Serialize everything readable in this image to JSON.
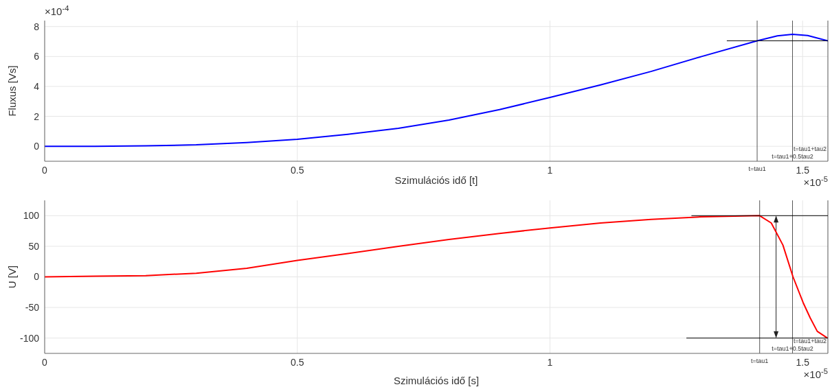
{
  "chart_data": [
    {
      "type": "line",
      "xlabel": "Szimulációs idő [t]",
      "ylabel": "Fluxus [Vs]",
      "xlim": [
        0,
        1.55
      ],
      "xticks": [
        0,
        0.5,
        1,
        1.5
      ],
      "ylim": [
        -1,
        8.4
      ],
      "yticks": [
        0,
        2,
        4,
        6,
        8
      ],
      "grid": true,
      "marker": "none",
      "series": [
        {
          "color": "#0000ff",
          "x": [
            0,
            0.1,
            0.2,
            0.3,
            0.4,
            0.5,
            0.6,
            0.7,
            0.8,
            0.9,
            1.0,
            1.1,
            1.2,
            1.3,
            1.41,
            1.45,
            1.48,
            1.51,
            1.55
          ],
          "values": [
            0,
            0,
            0.03,
            0.1,
            0.25,
            0.47,
            0.8,
            1.2,
            1.75,
            2.45,
            3.26,
            4.1,
            5.0,
            6.0,
            7.05,
            7.38,
            7.48,
            7.4,
            7.05
          ]
        },
        {
          "color": "#000000",
          "x": [
            1.35,
            1.55
          ],
          "values": [
            7.05,
            7.05
          ]
        }
      ],
      "ref_lines": [
        {
          "axis": "x",
          "value": 1.41,
          "label": "t=tau1",
          "color": "#555555"
        },
        {
          "axis": "x",
          "value": 1.48,
          "label": "t=tau1+0.5tau2",
          "color": "#555555"
        },
        {
          "axis": "x",
          "value": 1.55,
          "label": "t=tau1+tau2",
          "color": "#555555"
        }
      ],
      "annotations": [
        "×10$^{-4}$",
        "×10$^{-5}$"
      ]
    },
    {
      "type": "line",
      "xlabel": "Szimulációs idő [s]",
      "ylabel": "U [V]",
      "xlim": [
        0,
        1.55
      ],
      "xticks": [
        0,
        0.5,
        1,
        1.5
      ],
      "ylim": [
        -125,
        125
      ],
      "yticks": [
        -100,
        -50,
        0,
        50,
        100
      ],
      "grid": true,
      "marker": "none",
      "series": [
        {
          "color": "#ff0000",
          "x": [
            0,
            0.1,
            0.2,
            0.3,
            0.4,
            0.5,
            0.6,
            0.7,
            0.8,
            0.9,
            1.0,
            1.1,
            1.2,
            1.3,
            1.415,
            1.438,
            1.461,
            1.481,
            1.501,
            1.515,
            1.529,
            1.549
          ],
          "values": [
            0,
            1,
            2,
            6,
            14,
            27,
            38,
            50,
            61,
            71,
            80,
            88,
            94,
            98,
            100,
            88,
            52,
            0,
            -42,
            -67,
            -89,
            -100
          ]
        },
        {
          "color": "#000000",
          "x": [
            1.28,
            1.55
          ],
          "values": [
            100,
            100
          ]
        },
        {
          "color": "#000000",
          "x": [
            1.27,
            1.55
          ],
          "values": [
            -100,
            -100
          ]
        }
      ],
      "ref_lines": [
        {
          "axis": "x",
          "value": 1.415,
          "label": "t=tau1",
          "color": "#555555"
        },
        {
          "axis": "x",
          "value": 1.48,
          "label": "t=tau1+0.5tau2",
          "color": "#555555"
        },
        {
          "axis": "x",
          "value": 1.55,
          "label": "t=tau1+tau2",
          "color": "#555555"
        }
      ],
      "annotations": [
        "×10$^{-5}$"
      ]
    }
  ]
}
